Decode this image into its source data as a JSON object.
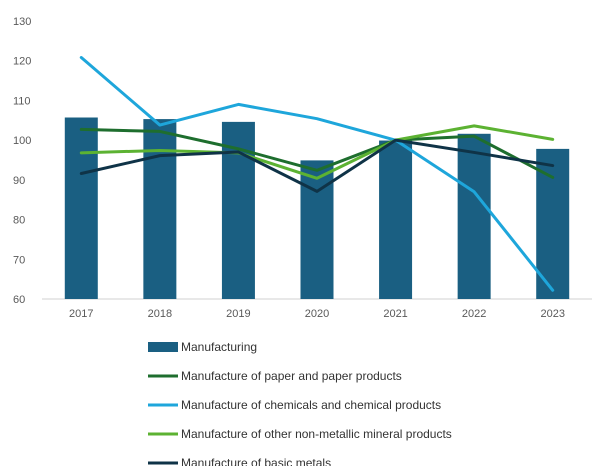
{
  "chart_data": {
    "type": "bar",
    "categories": [
      "2017",
      "2018",
      "2019",
      "2020",
      "2021",
      "2022",
      "2023"
    ],
    "ylim": [
      60,
      130
    ],
    "yticks": [
      60,
      70,
      80,
      90,
      100,
      110,
      120,
      130
    ],
    "grid": false,
    "legend_position": "bottom",
    "series": [
      {
        "name": "Manufacturing",
        "kind": "bar",
        "color": "#1a5f82",
        "values": [
          105.7,
          105.3,
          104.6,
          94.9,
          99.9,
          101.6,
          97.8
        ]
      },
      {
        "name": "Manufacture of paper and paper products",
        "kind": "line",
        "color": "#1e6e2e",
        "values": [
          102.7,
          102.2,
          97.8,
          92.4,
          100.0,
          101.0,
          90.6
        ]
      },
      {
        "name": "Manufacture of chemicals and chemical products",
        "kind": "line",
        "color": "#1ea6db",
        "values": [
          120.8,
          103.8,
          109.0,
          105.4,
          100.0,
          87.0,
          62.2
        ]
      },
      {
        "name": "Manufacture of other non-metallic mineral products",
        "kind": "line",
        "color": "#5cb232",
        "values": [
          96.8,
          97.4,
          96.8,
          90.4,
          100.0,
          103.6,
          100.2
        ]
      },
      {
        "name": "Manufacture of basic metals",
        "kind": "line",
        "color": "#0f3347",
        "values": [
          91.6,
          96.1,
          97.0,
          87.1,
          100.0,
          96.9,
          93.6
        ]
      }
    ]
  }
}
